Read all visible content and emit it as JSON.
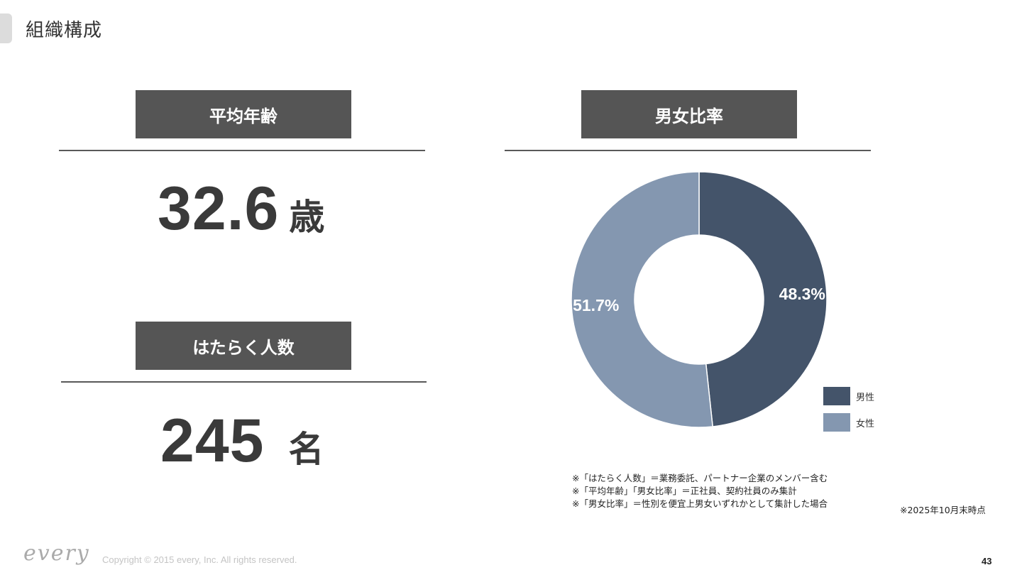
{
  "page": {
    "title": "組織構成",
    "page_number": "43"
  },
  "avg_age": {
    "heading": "平均年齢",
    "value": "32.6",
    "unit": "歳"
  },
  "headcount": {
    "heading": "はたらく人数",
    "value": "245",
    "unit": "名"
  },
  "gender": {
    "heading": "男女比率"
  },
  "chart_data": {
    "type": "pie",
    "donut": true,
    "categories": [
      "男性",
      "女性"
    ],
    "values": [
      48.3,
      51.7
    ],
    "data_labels": [
      "48.3%",
      "51.7%"
    ],
    "colors": [
      "#44546a",
      "#8497b0"
    ],
    "legend_position": "bottom-right"
  },
  "notes": [
    "※「はたらく人数」＝業務委託、パートナー企業のメンバー含む",
    "※「平均年齢｣「男女比率」＝正社員、契約社員のみ集計",
    "※「男女比率」＝性別を便宜上男女いずれかとして集計した場合"
  ],
  "as_of": "※2025年10月末時点",
  "footer": {
    "logo_text": "every",
    "copyright": "Copyright © 2015 every, Inc. All rights reserved."
  }
}
